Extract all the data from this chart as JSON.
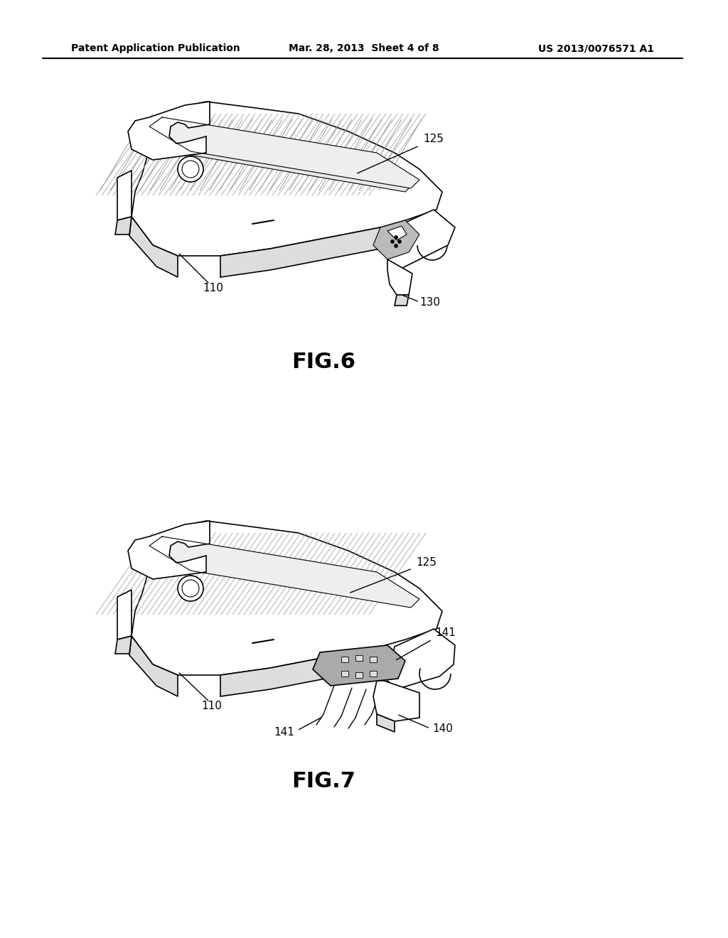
{
  "background_color": "#ffffff",
  "header_left": "Patent Application Publication",
  "header_center": "Mar. 28, 2013  Sheet 4 of 8",
  "header_right": "US 2013/0076571 A1",
  "fig6_label": "FIG.6",
  "fig7_label": "FIG.7",
  "label_110_fig6": "110",
  "label_125_fig6": "125",
  "label_130_fig6": "130",
  "label_110_fig7": "110",
  "label_125_fig7": "125",
  "label_140_fig7": "140",
  "label_141_top": "141",
  "label_141_bot": "141",
  "line_color": "#000000",
  "hatch_color": "#777777",
  "hatch_light": "#aaaaaa",
  "gray_fill": "#cccccc",
  "dark_gray": "#555555"
}
